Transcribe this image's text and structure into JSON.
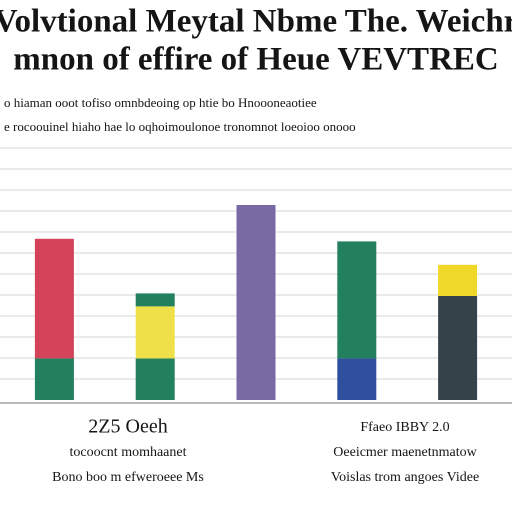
{
  "chart_data": {
    "type": "stacked-bar",
    "title": [
      "Volvtional Meytal Nbme The. Weichr",
      "mnon of effire of Heue VEVTREC"
    ],
    "subtitle": [
      "o hiaman ooot tofiso omnbdeoing op htie bo Hnoooneaotiee",
      "e rocoouinel hiaho hae lo oqhoimoulonoe tronomnot loeoioo onooo"
    ],
    "ylim": [
      0,
      100
    ],
    "grid": true,
    "series": [
      {
        "colors": [
          "#23805e",
          "#23805e",
          "#7a6aa3",
          "#2e4f9e",
          "#37434a"
        ],
        "values": [
          16,
          16,
          75,
          16,
          40
        ]
      },
      {
        "colors": [
          "#d3435a",
          "#efe04a",
          null,
          "#23805e",
          "#f0d828"
        ],
        "values": [
          46,
          20,
          null,
          45,
          12
        ]
      },
      {
        "colors": [
          null,
          "#23805e",
          null,
          null,
          null
        ],
        "values": [
          null,
          5,
          null,
          null,
          null
        ]
      }
    ],
    "notes_left": [
      "2Z5 Oeeh",
      "tocoocnt momhaanet",
      "Bono boo m efweroeee Ms"
    ],
    "notes_right": [
      "Ffaeo IBBY 2.0",
      "Oeeicmer maenetnmatow",
      "Voislas trom angoes Videe"
    ]
  }
}
